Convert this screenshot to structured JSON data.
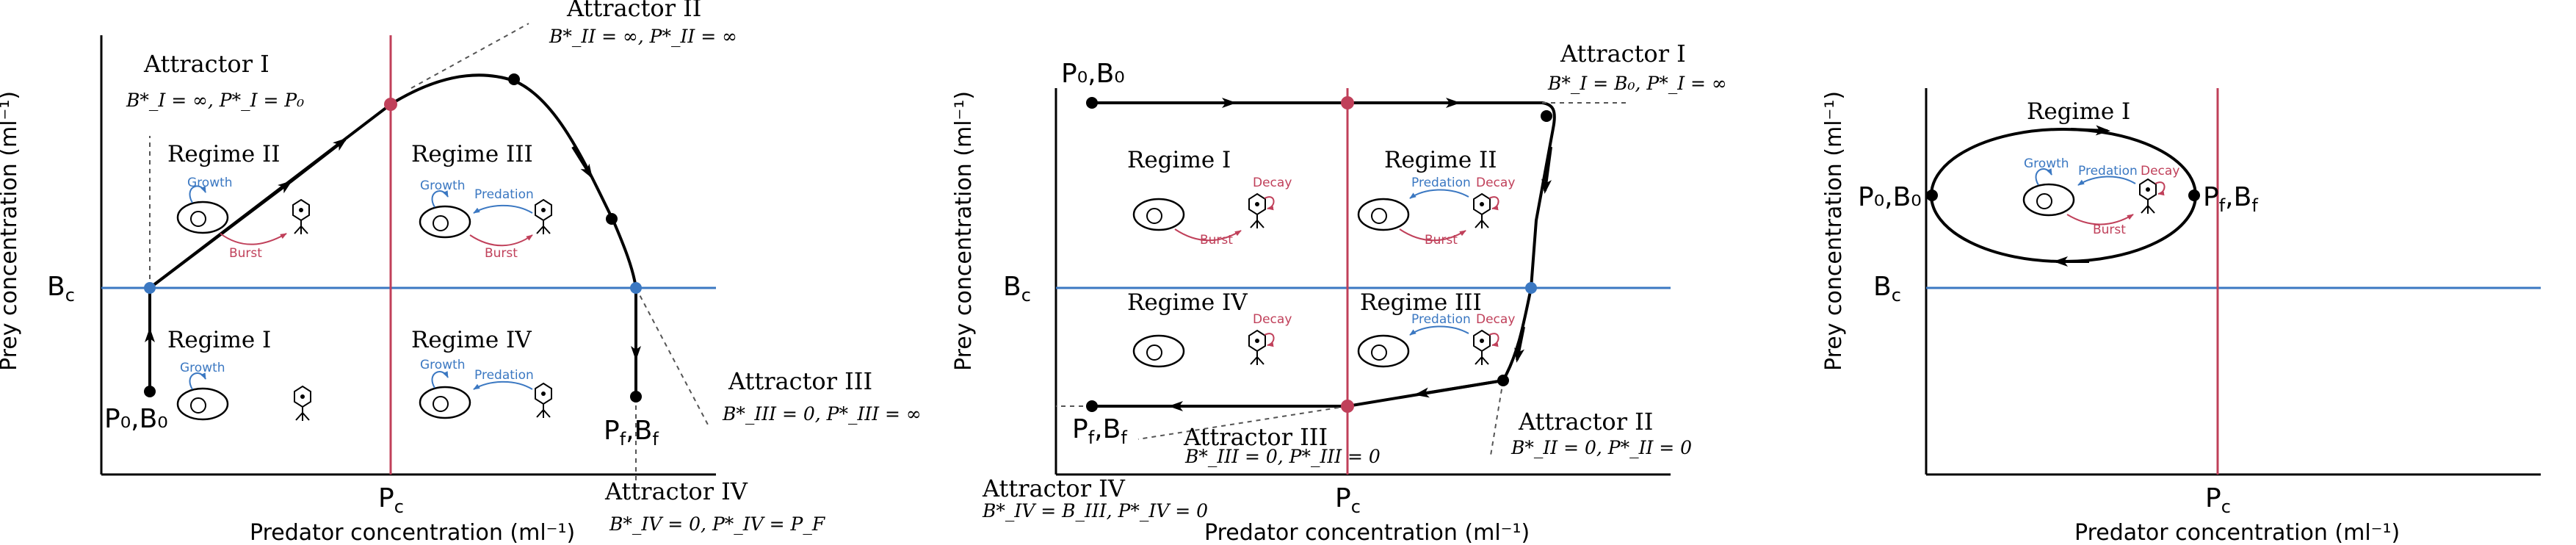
{
  "panels": [
    {
      "y_axis_label": "Prey concentration (ml⁻¹)",
      "x_axis_label": "Predator concentration (ml⁻¹)",
      "tick_bc": "B",
      "tick_bc_sub": "c",
      "tick_pc": "P",
      "tick_pc_sub": "c",
      "start_label": "P₀,B₀",
      "end_label": "P",
      "end_sub": "f",
      "end_b": ",B",
      "end_b_sub": "f",
      "regimes": [
        "Regime II",
        "Regime III",
        "Regime I",
        "Regime IV"
      ],
      "attractors": [
        {
          "title": "Attractor I",
          "eq": "B*_I = ∞, P*_I = P₀"
        },
        {
          "title": "Attractor II",
          "eq": "B*_II = ∞, P*_II = ∞"
        },
        {
          "title": "Attractor III",
          "eq": "B*_III = 0, P*_III = ∞"
        },
        {
          "title": "Attractor IV",
          "eq": "B*_IV = 0, P*_IV = P_F"
        }
      ],
      "process_labels": {
        "growth": "Growth",
        "predation": "Predation",
        "burst": "Burst"
      }
    },
    {
      "y_axis_label": "Prey concentration (ml⁻¹)",
      "x_axis_label": "Predator concentration (ml⁻¹)",
      "tick_bc": "B",
      "tick_bc_sub": "c",
      "tick_pc": "P",
      "tick_pc_sub": "c",
      "start_label": "P₀,B₀",
      "end_label": "P",
      "end_sub": "f",
      "end_b": ",B",
      "end_b_sub": "f",
      "regimes": [
        "Regime I",
        "Regime II",
        "Regime IV",
        "Regime III"
      ],
      "attractors": [
        {
          "title": "Attractor I",
          "eq": "B*_I = B₀, P*_I = ∞"
        },
        {
          "title": "Attractor II",
          "eq": "B*_II = 0, P*_II = 0"
        },
        {
          "title": "Attractor III",
          "eq": "B*_III = 0, P*_III = 0"
        },
        {
          "title": "Attractor IV",
          "eq": "B*_IV = B_III, P*_IV = 0"
        }
      ],
      "process_labels": {
        "predation": "Predation",
        "decay": "Decay",
        "burst": "Burst"
      }
    },
    {
      "y_axis_label": "Prey concentration (ml⁻¹)",
      "x_axis_label": "Predator concentration (ml⁻¹)",
      "tick_bc": "B",
      "tick_bc_sub": "c",
      "tick_pc": "P",
      "tick_pc_sub": "c",
      "start_label": "P₀,B₀",
      "end_label": "P",
      "end_sub": "f",
      "end_b": ",B",
      "end_b_sub": "f",
      "regimes": [
        "Regime I"
      ],
      "process_labels": {
        "growth": "Growth",
        "predation": "Predation",
        "decay": "Decay",
        "burst": "Burst"
      }
    }
  ],
  "colors": {
    "prey_threshold": "#3b78c2",
    "predator_threshold": "#c0405a",
    "trajectory": "#000000"
  }
}
